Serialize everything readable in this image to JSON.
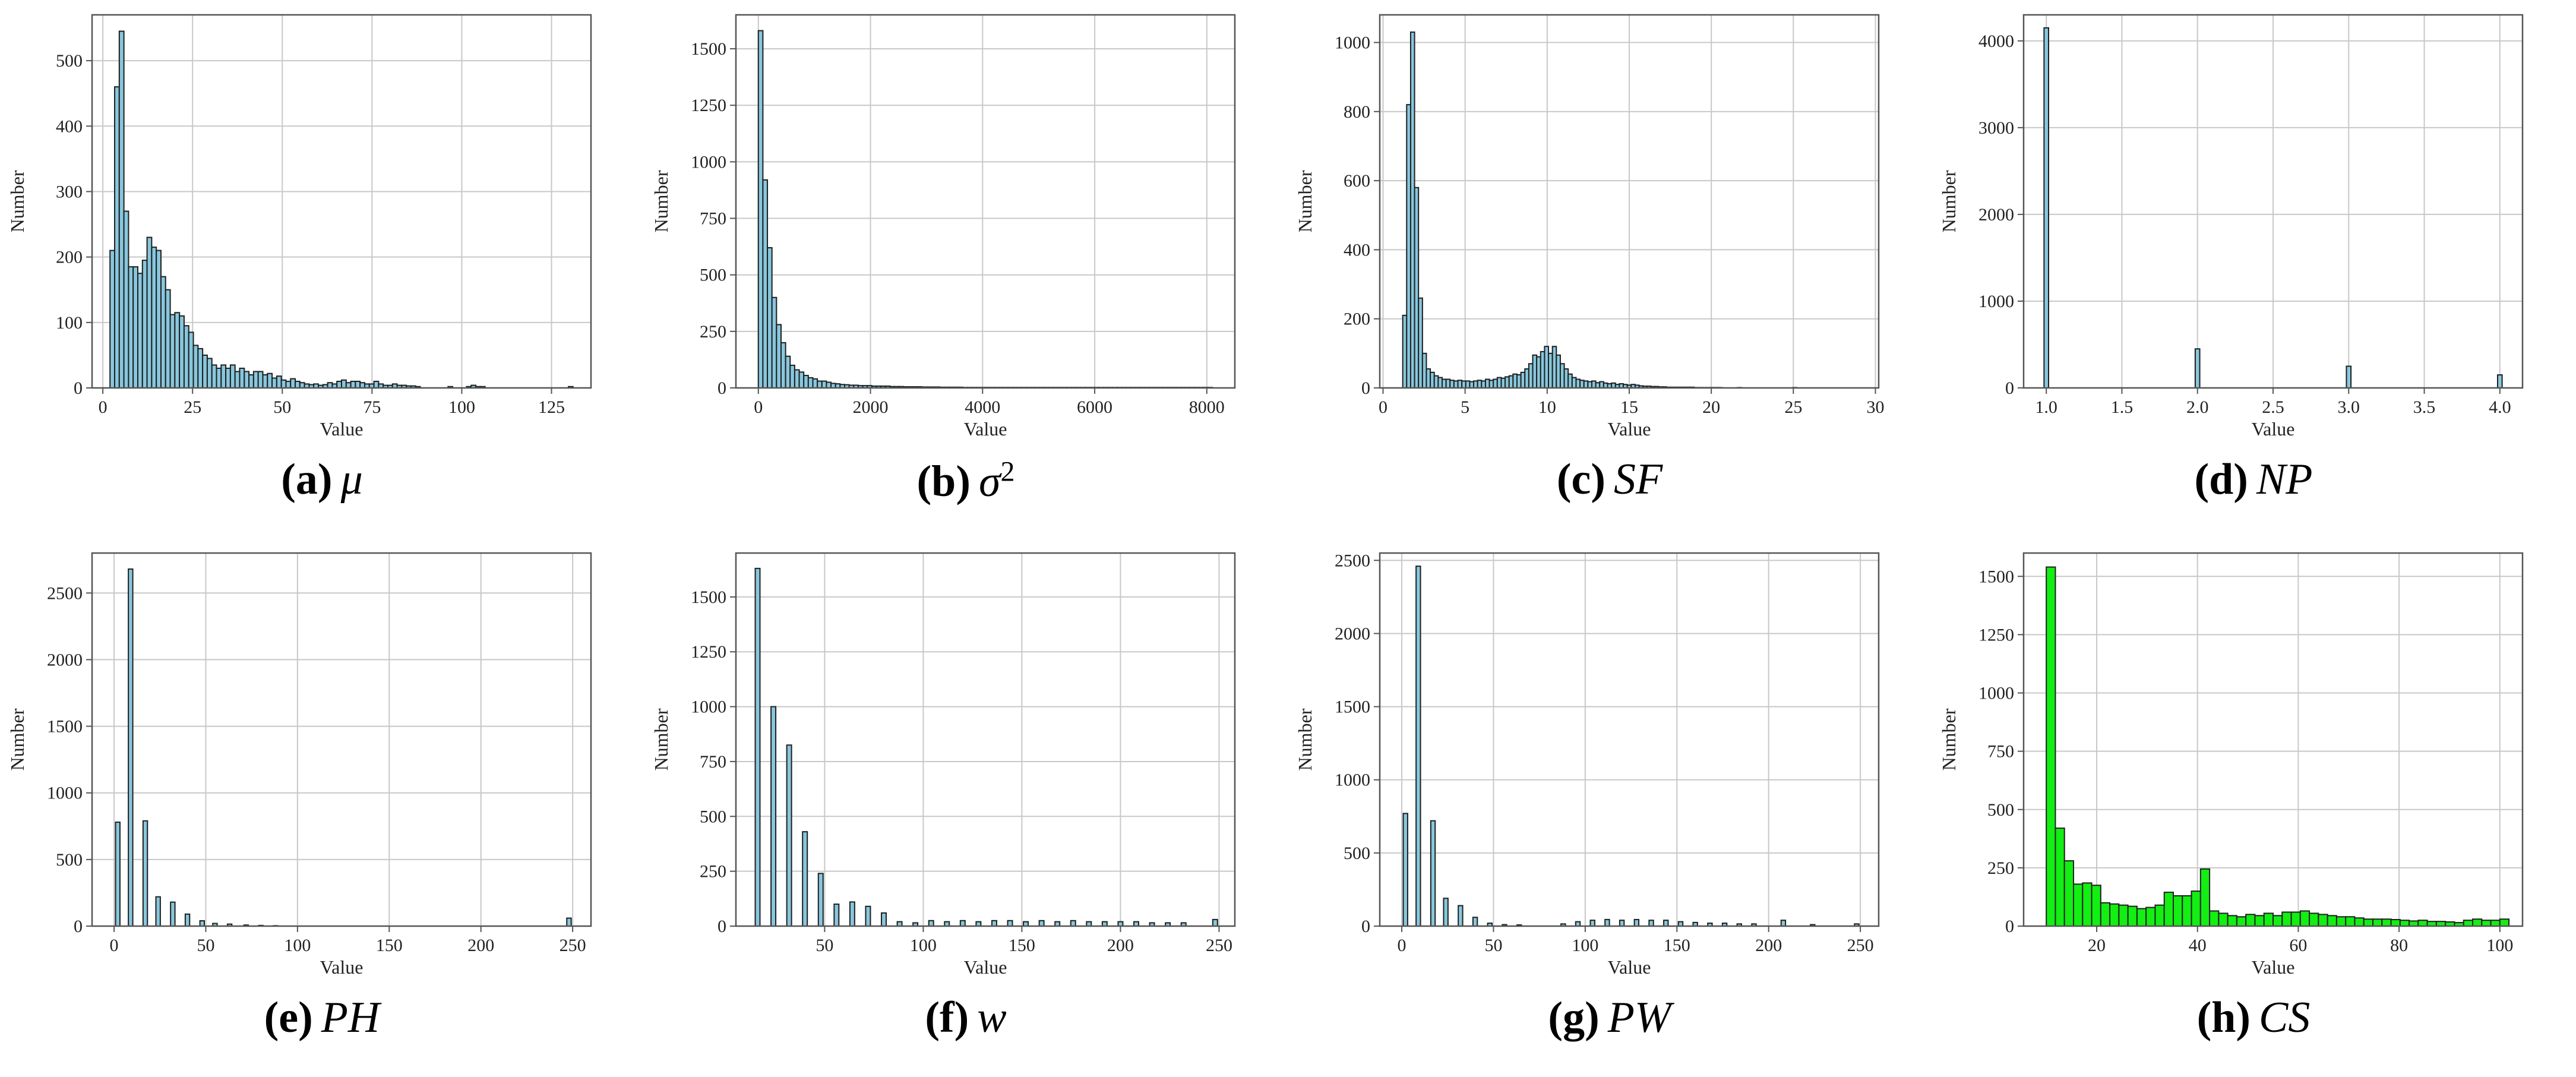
{
  "colors": {
    "bar": "#87c7dd",
    "bar_h": "#13ee13",
    "edge": "#1f1f1f",
    "grid": "#c8c8c8",
    "frame": "#555555"
  },
  "chart_data": [
    {
      "id": "a",
      "type": "bar",
      "caption_label": "(a)",
      "caption_symbol": "μ",
      "caption_sup": "",
      "xlabel": "Value",
      "ylabel": "Number",
      "xlim": [
        -3,
        136
      ],
      "ylim": [
        0,
        570
      ],
      "xticks": [
        0,
        25,
        50,
        75,
        100,
        125
      ],
      "xtick_labels": [
        "0",
        "25",
        "50",
        "75",
        "100",
        "125"
      ],
      "yticks": [
        0,
        100,
        200,
        300,
        400,
        500
      ],
      "ytick_labels": [
        "0",
        "100",
        "200",
        "300",
        "400",
        "500"
      ],
      "bin_start": 2.0,
      "bin_width": 1.29,
      "values": [
        210,
        460,
        545,
        270,
        185,
        185,
        175,
        195,
        230,
        215,
        210,
        170,
        150,
        112,
        115,
        110,
        95,
        85,
        65,
        60,
        50,
        45,
        35,
        30,
        35,
        30,
        35,
        25,
        30,
        25,
        20,
        25,
        25,
        20,
        22,
        15,
        18,
        12,
        10,
        14,
        10,
        8,
        6,
        5,
        6,
        4,
        5,
        8,
        6,
        10,
        12,
        8,
        10,
        10,
        8,
        6,
        6,
        10,
        6,
        4,
        4,
        6,
        4,
        4,
        3,
        3,
        2,
        0,
        0,
        0,
        0,
        0,
        0,
        2,
        0,
        0,
        0,
        2,
        4,
        2,
        2,
        0,
        0,
        0,
        0,
        0,
        0,
        0,
        0,
        0,
        0,
        0,
        0,
        0,
        0,
        0,
        0,
        0,
        0,
        2
      ]
    },
    {
      "id": "b",
      "type": "bar",
      "caption_label": "(b)",
      "caption_symbol": "σ",
      "caption_sup": "2",
      "xlabel": "Value",
      "ylabel": "Number",
      "xlim": [
        -400,
        8500
      ],
      "ylim": [
        0,
        1650
      ],
      "xticks": [
        0,
        2000,
        4000,
        6000,
        8000
      ],
      "xtick_labels": [
        "0",
        "2000",
        "4000",
        "6000",
        "8000"
      ],
      "yticks": [
        0,
        250,
        500,
        750,
        1000,
        1250,
        1500
      ],
      "ytick_labels": [
        "0",
        "250",
        "500",
        "750",
        "1000",
        "1250",
        "1500"
      ],
      "bin_start": 0,
      "bin_width": 81,
      "values": [
        1580,
        920,
        620,
        400,
        280,
        200,
        140,
        100,
        80,
        70,
        55,
        45,
        40,
        30,
        30,
        25,
        20,
        18,
        15,
        14,
        12,
        12,
        10,
        10,
        10,
        8,
        8,
        8,
        8,
        6,
        6,
        6,
        5,
        5,
        5,
        5,
        4,
        4,
        4,
        4,
        3,
        3,
        3,
        3,
        3,
        2,
        2,
        2,
        2,
        2,
        2,
        2,
        2,
        2,
        2,
        2,
        2,
        2,
        2,
        2,
        2,
        2,
        2,
        2,
        2,
        2,
        2,
        2,
        2,
        2,
        2,
        2,
        2,
        2,
        2,
        2,
        2,
        2,
        2,
        2,
        2,
        2,
        2,
        2,
        2,
        2,
        2,
        2,
        2,
        2,
        2,
        2,
        2,
        2,
        2,
        2,
        2,
        2,
        2,
        2
      ]
    },
    {
      "id": "c",
      "type": "bar",
      "caption_label": "(c)",
      "caption_symbol": "SF",
      "caption_sup": "",
      "xlabel": "Value",
      "ylabel": "Number",
      "xlim": [
        -0.2,
        30.2
      ],
      "ylim": [
        0,
        1080
      ],
      "xticks": [
        0,
        5,
        10,
        15,
        20,
        25,
        30
      ],
      "xtick_labels": [
        "0",
        "5",
        "10",
        "15",
        "20",
        "25",
        "30"
      ],
      "yticks": [
        0,
        200,
        400,
        600,
        800,
        1000
      ],
      "ytick_labels": [
        "0",
        "200",
        "400",
        "600",
        "800",
        "1000"
      ],
      "bin_start": 1.2,
      "bin_width": 0.24,
      "values": [
        210,
        820,
        1030,
        580,
        260,
        100,
        55,
        45,
        35,
        30,
        25,
        25,
        22,
        20,
        22,
        20,
        20,
        18,
        20,
        22,
        20,
        25,
        22,
        25,
        30,
        28,
        32,
        35,
        40,
        38,
        45,
        55,
        70,
        95,
        90,
        105,
        120,
        100,
        120,
        95,
        70,
        55,
        40,
        30,
        25,
        22,
        20,
        18,
        20,
        15,
        18,
        14,
        12,
        14,
        10,
        12,
        10,
        8,
        10,
        8,
        6,
        5,
        5,
        4,
        4,
        3,
        3,
        2,
        2,
        2,
        2,
        2,
        2,
        2,
        1,
        1,
        1,
        1,
        1,
        1,
        1,
        0,
        0,
        0,
        0,
        1,
        0,
        0,
        0,
        0,
        0,
        0,
        0,
        0,
        0,
        0,
        0,
        0,
        0,
        1,
        0,
        0,
        0,
        0,
        0,
        0,
        0,
        0,
        0,
        0,
        0,
        0,
        0,
        0,
        0,
        0
      ]
    },
    {
      "id": "d",
      "type": "bar",
      "caption_label": "(d)",
      "caption_symbol": "NP",
      "caption_sup": "",
      "xlabel": "Value",
      "ylabel": "Number",
      "xlim": [
        0.85,
        4.15
      ],
      "ylim": [
        0,
        4300
      ],
      "xticks": [
        1.0,
        1.5,
        2.0,
        2.5,
        3.0,
        3.5,
        4.0
      ],
      "xtick_labels": [
        "1.0",
        "1.5",
        "2.0",
        "2.5",
        "3.0",
        "3.5",
        "4.0"
      ],
      "yticks": [
        0,
        1000,
        2000,
        3000,
        4000
      ],
      "ytick_labels": [
        "0",
        "1000",
        "2000",
        "3000",
        "4000"
      ],
      "bars": [
        [
          1.0,
          4150
        ],
        [
          2.0,
          450
        ],
        [
          3.0,
          250
        ],
        [
          4.0,
          150
        ]
      ],
      "bar_width": 0.03
    },
    {
      "id": "e",
      "type": "bar",
      "caption_label": "(e)",
      "caption_symbol": "PH",
      "caption_sup": "",
      "xlabel": "Value",
      "ylabel": "Number",
      "xlim": [
        -12,
        260
      ],
      "ylim": [
        0,
        2800
      ],
      "xticks": [
        0,
        50,
        100,
        150,
        200,
        250
      ],
      "xtick_labels": [
        "0",
        "50",
        "100",
        "150",
        "200",
        "250"
      ],
      "yticks": [
        0,
        500,
        1000,
        1500,
        2000,
        2500
      ],
      "ytick_labels": [
        "0",
        "500",
        "1000",
        "1500",
        "2000",
        "2500"
      ],
      "bars": [
        [
          2,
          780
        ],
        [
          9,
          2680
        ],
        [
          17,
          790
        ],
        [
          24,
          220
        ],
        [
          32,
          180
        ],
        [
          40,
          90
        ],
        [
          48,
          40
        ],
        [
          55,
          20
        ],
        [
          63,
          15
        ],
        [
          72,
          8
        ],
        [
          80,
          5
        ],
        [
          88,
          3
        ],
        [
          248,
          60
        ]
      ],
      "bar_width": 2.4
    },
    {
      "id": "f",
      "type": "bar",
      "caption_label": "(f)",
      "caption_symbol": "w",
      "caption_sup": "",
      "xlabel": "Value",
      "ylabel": "Number",
      "xlim": [
        5,
        258
      ],
      "ylim": [
        0,
        1700
      ],
      "xticks": [
        50,
        100,
        150,
        200,
        250
      ],
      "xtick_labels": [
        "50",
        "100",
        "150",
        "200",
        "250"
      ],
      "yticks": [
        0,
        250,
        500,
        750,
        1000,
        1250,
        1500
      ],
      "ytick_labels": [
        "0",
        "250",
        "500",
        "750",
        "1000",
        "1250",
        "1500"
      ],
      "bars": [
        [
          16,
          1630
        ],
        [
          24,
          1000
        ],
        [
          32,
          825
        ],
        [
          40,
          430
        ],
        [
          48,
          240
        ],
        [
          56,
          100
        ],
        [
          64,
          110
        ],
        [
          72,
          90
        ],
        [
          80,
          60
        ],
        [
          88,
          20
        ],
        [
          96,
          15
        ],
        [
          104,
          25
        ],
        [
          112,
          20
        ],
        [
          120,
          25
        ],
        [
          128,
          20
        ],
        [
          136,
          25
        ],
        [
          144,
          25
        ],
        [
          152,
          20
        ],
        [
          160,
          25
        ],
        [
          168,
          20
        ],
        [
          176,
          25
        ],
        [
          184,
          20
        ],
        [
          192,
          20
        ],
        [
          200,
          20
        ],
        [
          208,
          20
        ],
        [
          216,
          15
        ],
        [
          224,
          15
        ],
        [
          232,
          15
        ],
        [
          248,
          30
        ]
      ],
      "bar_width": 2.4
    },
    {
      "id": "g",
      "type": "bar",
      "caption_label": "(g)",
      "caption_symbol": "PW",
      "caption_sup": "",
      "xlabel": "Value",
      "ylabel": "Number",
      "xlim": [
        -12,
        260
      ],
      "ylim": [
        0,
        2550
      ],
      "xticks": [
        0,
        50,
        100,
        150,
        200,
        250
      ],
      "xtick_labels": [
        "0",
        "50",
        "100",
        "150",
        "200",
        "250"
      ],
      "yticks": [
        0,
        500,
        1000,
        1500,
        2000,
        2500
      ],
      "ytick_labels": [
        "0",
        "500",
        "1000",
        "1500",
        "2000",
        "2500"
      ],
      "bars": [
        [
          2,
          770
        ],
        [
          9,
          2460
        ],
        [
          17,
          720
        ],
        [
          24,
          190
        ],
        [
          32,
          140
        ],
        [
          40,
          60
        ],
        [
          48,
          20
        ],
        [
          56,
          10
        ],
        [
          64,
          8
        ],
        [
          88,
          15
        ],
        [
          96,
          30
        ],
        [
          104,
          40
        ],
        [
          112,
          45
        ],
        [
          120,
          40
        ],
        [
          128,
          45
        ],
        [
          136,
          40
        ],
        [
          144,
          40
        ],
        [
          152,
          30
        ],
        [
          160,
          25
        ],
        [
          168,
          20
        ],
        [
          176,
          20
        ],
        [
          184,
          15
        ],
        [
          192,
          15
        ],
        [
          208,
          40
        ],
        [
          224,
          10
        ],
        [
          248,
          15
        ]
      ],
      "bar_width": 2.4
    },
    {
      "id": "h",
      "type": "bar",
      "caption_label": "(h)",
      "caption_symbol": "CS",
      "caption_sup": "",
      "xlabel": "Value",
      "ylabel": "Number",
      "xlim": [
        5.5,
        104.5
      ],
      "ylim": [
        0,
        1600
      ],
      "xticks": [
        20,
        40,
        60,
        80,
        100
      ],
      "xtick_labels": [
        "20",
        "40",
        "60",
        "80",
        "100"
      ],
      "yticks": [
        0,
        250,
        500,
        750,
        1000,
        1250,
        1500
      ],
      "ytick_labels": [
        "0",
        "250",
        "500",
        "750",
        "1000",
        "1250",
        "1500"
      ],
      "bin_start": 10,
      "bin_width": 1.8,
      "color": "bar_h",
      "values": [
        1540,
        420,
        280,
        180,
        185,
        175,
        100,
        95,
        90,
        85,
        75,
        80,
        90,
        145,
        130,
        130,
        150,
        245,
        65,
        55,
        45,
        40,
        50,
        45,
        55,
        45,
        60,
        60,
        65,
        55,
        50,
        45,
        40,
        40,
        35,
        30,
        30,
        30,
        28,
        25,
        22,
        25,
        20,
        20,
        18,
        15,
        25,
        30,
        25,
        25,
        30
      ]
    }
  ]
}
